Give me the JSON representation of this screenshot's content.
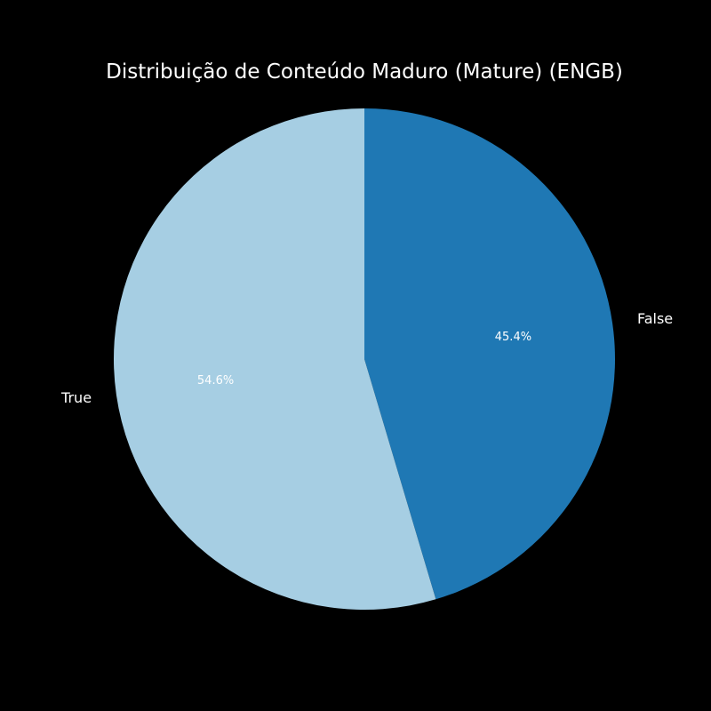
{
  "chart_data": {
    "type": "pie",
    "title": "Distribuição de Conteúdo Maduro (Mature) (ENGB)",
    "categories": [
      "False",
      "True"
    ],
    "values": [
      45.4,
      54.6
    ],
    "labels": [
      "45.4%",
      "54.6%"
    ],
    "colors": [
      "#1f78b4",
      "#a6cee3"
    ],
    "start_angle_deg": 90,
    "direction": "clockwise",
    "background": "#000000",
    "legend": "none"
  }
}
